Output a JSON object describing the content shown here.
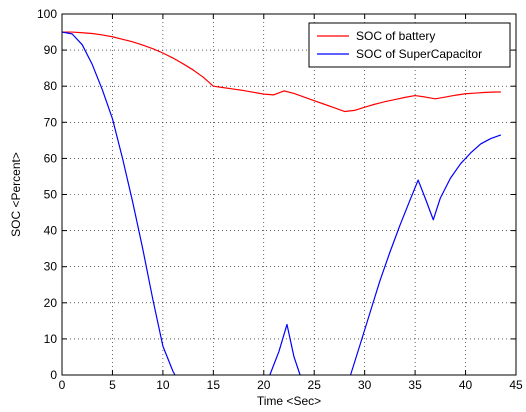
{
  "chart_data": {
    "type": "line",
    "xlabel": "Time <Sec>",
    "ylabel": "SOC <Percent>",
    "xlim": [
      0,
      45
    ],
    "ylim": [
      0,
      100
    ],
    "xticks": [
      0,
      5,
      10,
      15,
      20,
      25,
      30,
      35,
      40,
      45
    ],
    "yticks": [
      0,
      10,
      20,
      30,
      40,
      50,
      60,
      70,
      80,
      90,
      100
    ],
    "grid": true,
    "legend_position": "top-right",
    "series": [
      {
        "name": "SOC of battery",
        "color": "#ff0000",
        "x": [
          0,
          1,
          2,
          3,
          4,
          5,
          6,
          7,
          8,
          9,
          10,
          11,
          12,
          13,
          14,
          15,
          16,
          17,
          18,
          19,
          20,
          21,
          22,
          23,
          24,
          25,
          26,
          27,
          28,
          29,
          30,
          31,
          32,
          33,
          34,
          35,
          36,
          37,
          38,
          39,
          40,
          41,
          42,
          43,
          43.5
        ],
        "y": [
          95.0,
          95.0,
          94.8,
          94.6,
          94.2,
          93.7,
          93.0,
          92.3,
          91.4,
          90.4,
          89.2,
          87.8,
          86.2,
          84.5,
          82.5,
          80.0,
          79.6,
          79.2,
          78.8,
          78.3,
          77.8,
          77.6,
          78.7,
          78.0,
          77.0,
          76.0,
          75.0,
          74.0,
          73.0,
          73.3,
          74.2,
          75.0,
          75.7,
          76.3,
          76.9,
          77.4,
          77.0,
          76.5,
          77.0,
          77.5,
          77.9,
          78.1,
          78.3,
          78.4,
          78.4
        ]
      },
      {
        "name": "SOC of SuperCapacitor",
        "color": "#0000ff",
        "x": [
          0,
          1,
          2,
          3,
          4,
          5,
          6,
          7,
          8,
          9,
          10,
          11,
          11.2,
          null,
          20.6,
          21.5,
          22.3,
          23,
          23.6,
          null,
          28.6,
          29.5,
          30.5,
          31.5,
          32.5,
          33.5,
          34.5,
          35.3,
          36,
          36.8,
          37.5,
          38.5,
          39.5,
          40.5,
          41.5,
          42.5,
          43.5
        ],
        "y": [
          95.0,
          94.5,
          91.5,
          86.0,
          79.0,
          71.0,
          60.0,
          48.0,
          35.0,
          21.0,
          8.0,
          1.0,
          0.0,
          null,
          0.0,
          6.5,
          14.0,
          5.0,
          0.0,
          null,
          0.0,
          8.0,
          17.0,
          26.0,
          34.0,
          41.5,
          48.5,
          54.0,
          49.0,
          43.0,
          49.0,
          54.5,
          58.5,
          61.5,
          64.0,
          65.5,
          66.5
        ]
      }
    ]
  }
}
